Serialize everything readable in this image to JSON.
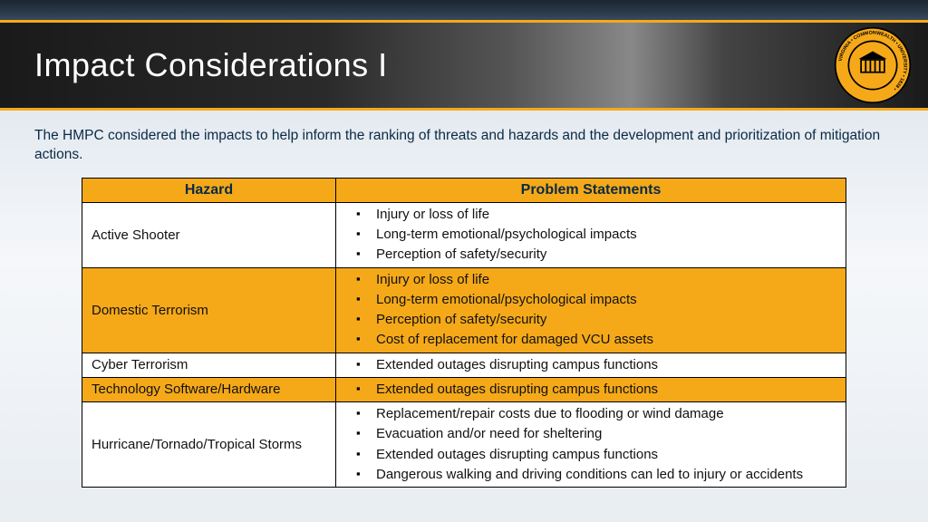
{
  "header": {
    "title": "Impact Considerations I",
    "seal_outer_text": "VIRGINIA COMMONWEALTH UNIVERSITY",
    "seal_year": "1838"
  },
  "intro": "The HMPC considered the impacts to help inform the ranking of threats and hazards and the development and prioritization of mitigation actions.",
  "table": {
    "header_color": "#f5a919",
    "border_color": "#000000",
    "text_color": "#0a2a44",
    "columns": [
      "Hazard",
      "Problem Statements"
    ],
    "rows": [
      {
        "hazard": "Active Shooter",
        "alt": false,
        "statements": [
          "Injury or loss of life",
          "Long-term emotional/psychological impacts",
          "Perception of safety/security"
        ]
      },
      {
        "hazard": "Domestic Terrorism",
        "alt": true,
        "statements": [
          "Injury or loss of life",
          "Long-term emotional/psychological impacts",
          "Perception of safety/security",
          "Cost of replacement for damaged VCU assets"
        ]
      },
      {
        "hazard": "Cyber Terrorism",
        "alt": false,
        "statements": [
          "Extended outages disrupting campus functions"
        ]
      },
      {
        "hazard": "Technology Software/Hardware",
        "alt": true,
        "statements": [
          "Extended outages disrupting campus functions"
        ]
      },
      {
        "hazard": "Hurricane/Tornado/Tropical Storms",
        "alt": false,
        "statements": [
          "Replacement/repair costs due to flooding or wind damage",
          "Evacuation and/or need for sheltering",
          "Extended outages disrupting campus functions",
          "Dangerous walking and driving conditions can led to injury or accidents"
        ]
      }
    ]
  }
}
